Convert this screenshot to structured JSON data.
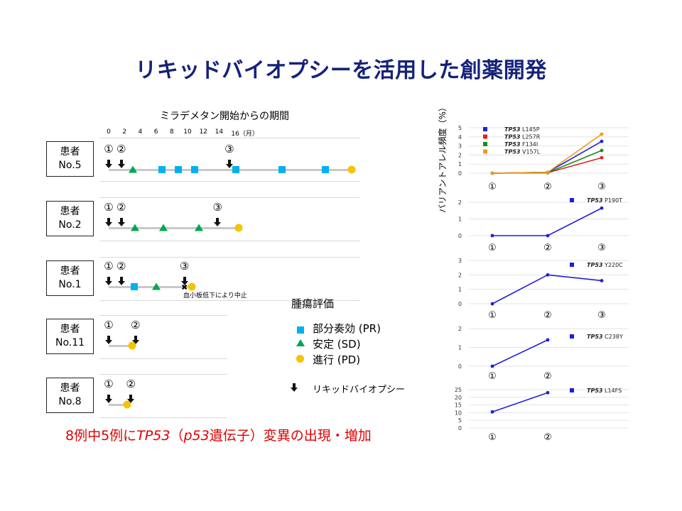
{
  "title": "リキッドバイオプシーを活用した創薬開発",
  "timeline": {
    "axis_label": "ミラデメタン開始からの期間",
    "month_ticks": [
      "0",
      "2",
      "4",
      "6",
      "8",
      "10",
      "12",
      "14",
      "16（月）"
    ],
    "patients": [
      {
        "name_line1": "患者",
        "name_line2": "No.5",
        "biopsies": [
          {
            "label": "①",
            "month": 0
          },
          {
            "label": "②",
            "month": 1.6
          },
          {
            "label": "③",
            "month": 15.3
          }
        ],
        "events": [
          {
            "type": "SD",
            "month": 3.1
          },
          {
            "type": "PR",
            "month": 6.8
          },
          {
            "type": "PR",
            "month": 8.8
          },
          {
            "type": "PR",
            "month": 10.9
          },
          {
            "type": "PR",
            "month": 16.1
          },
          {
            "type": "PR",
            "month": 22.0
          },
          {
            "type": "PR",
            "month": 27.5
          },
          {
            "type": "PD",
            "month": 30.8
          }
        ]
      },
      {
        "name_line1": "患者",
        "name_line2": "No.2",
        "biopsies": [
          {
            "label": "①",
            "month": 0
          },
          {
            "label": "②",
            "month": 1.6
          },
          {
            "label": "③",
            "month": 13.8
          }
        ],
        "events": [
          {
            "type": "SD",
            "month": 3.3
          },
          {
            "type": "SD",
            "month": 6.9
          },
          {
            "type": "SD",
            "month": 11.4
          },
          {
            "type": "PD",
            "month": 16.5
          }
        ]
      },
      {
        "name_line1": "患者",
        "name_line2": "No.1",
        "biopsies": [
          {
            "label": "①",
            "month": 0
          },
          {
            "label": "②",
            "month": 1.6
          },
          {
            "label": "③",
            "month": 9.6
          }
        ],
        "events": [
          {
            "type": "PR",
            "month": 3.2
          },
          {
            "type": "SD",
            "month": 6.0
          },
          {
            "type": "PD",
            "month": 10.5
          }
        ],
        "stop_note": "血小板低下により中止"
      },
      {
        "name_line1": "患者",
        "name_line2": "No.11",
        "biopsies": [
          {
            "label": "①",
            "month": 0
          },
          {
            "label": "②",
            "month": 3.4
          }
        ],
        "events": [
          {
            "type": "PD",
            "month": 3.0
          }
        ]
      },
      {
        "name_line1": "患者",
        "name_line2": "No.8",
        "biopsies": [
          {
            "label": "①",
            "month": 0
          },
          {
            "label": "②",
            "month": 2.8
          }
        ],
        "events": [
          {
            "type": "PD",
            "month": 2.3
          }
        ]
      }
    ]
  },
  "legend": {
    "title": "腫瘍評価",
    "items": [
      {
        "symbol": "square",
        "color": "#00b0f0",
        "label": "部分奏効 (PR)"
      },
      {
        "symbol": "triangle",
        "color": "#00a651",
        "label": "安定 (SD)"
      },
      {
        "symbol": "circle",
        "color": "#f5c400",
        "label": "進行 (PD)"
      }
    ],
    "biopsy_label": "リキッドバイオプシー"
  },
  "summary": {
    "part1": "8例中5例に",
    "gene": "TP53",
    "part2": "（",
    "gene2": "p53",
    "part3": "遺伝子）変異の出現・増加"
  },
  "chart_data": {
    "type": "line",
    "ylabel": "バリアントアレル頻度（%）",
    "panels": [
      {
        "categories": [
          "①",
          "②",
          "③"
        ],
        "ylim": [
          0,
          5
        ],
        "yticks": [
          "0",
          "1",
          "2",
          "3",
          "4",
          "5"
        ],
        "series": [
          {
            "name": "TP53 L145P",
            "gene": "TP53",
            "variant": "L145P",
            "color": "#1f1fd8",
            "values": [
              0,
              0.1,
              3.5
            ]
          },
          {
            "name": "TP53 L257R",
            "gene": "TP53",
            "variant": "L257R",
            "color": "#e02020",
            "values": [
              0,
              0.05,
              1.7
            ]
          },
          {
            "name": "TP53 F134I",
            "gene": "TP53",
            "variant": "F134I",
            "color": "#1a8a1a",
            "values": [
              0,
              0.05,
              2.5
            ]
          },
          {
            "name": "TP53 V157L",
            "gene": "TP53",
            "variant": "V157L",
            "color": "#f39a1e",
            "values": [
              0,
              0.1,
              4.3
            ]
          }
        ]
      },
      {
        "categories": [
          "①",
          "②",
          "③"
        ],
        "ylim": [
          0,
          2
        ],
        "yticks": [
          "0",
          "1",
          "2"
        ],
        "series": [
          {
            "name": "TP53 P190T",
            "gene": "TP53",
            "variant": "P190T",
            "color": "#1f1fd8",
            "values": [
              0,
              0,
              1.65
            ]
          }
        ]
      },
      {
        "categories": [
          "①",
          "②",
          "③"
        ],
        "ylim": [
          0,
          3
        ],
        "yticks": [
          "0",
          "1",
          "2",
          "3"
        ],
        "series": [
          {
            "name": "TP53 Y220C",
            "gene": "TP53",
            "variant": "Y220C",
            "color": "#1f1fd8",
            "values": [
              0,
              2,
              1.6
            ]
          }
        ]
      },
      {
        "categories": [
          "①",
          "②"
        ],
        "ylim": [
          0,
          2
        ],
        "yticks": [
          "0",
          "1",
          "2"
        ],
        "series": [
          {
            "name": "TP53 C238Y",
            "gene": "TP53",
            "variant": "C238Y",
            "color": "#1f1fd8",
            "values": [
              0,
              1.4
            ]
          }
        ]
      },
      {
        "categories": [
          "①",
          "②"
        ],
        "ylim": [
          0,
          25
        ],
        "yticks": [
          "0",
          "5",
          "10",
          "15",
          "20",
          "25"
        ],
        "series": [
          {
            "name": "TP53 L14FS",
            "gene": "TP53",
            "variant": "L14FS",
            "color": "#1f1fd8",
            "values": [
              10.5,
              23
            ]
          }
        ]
      }
    ]
  }
}
